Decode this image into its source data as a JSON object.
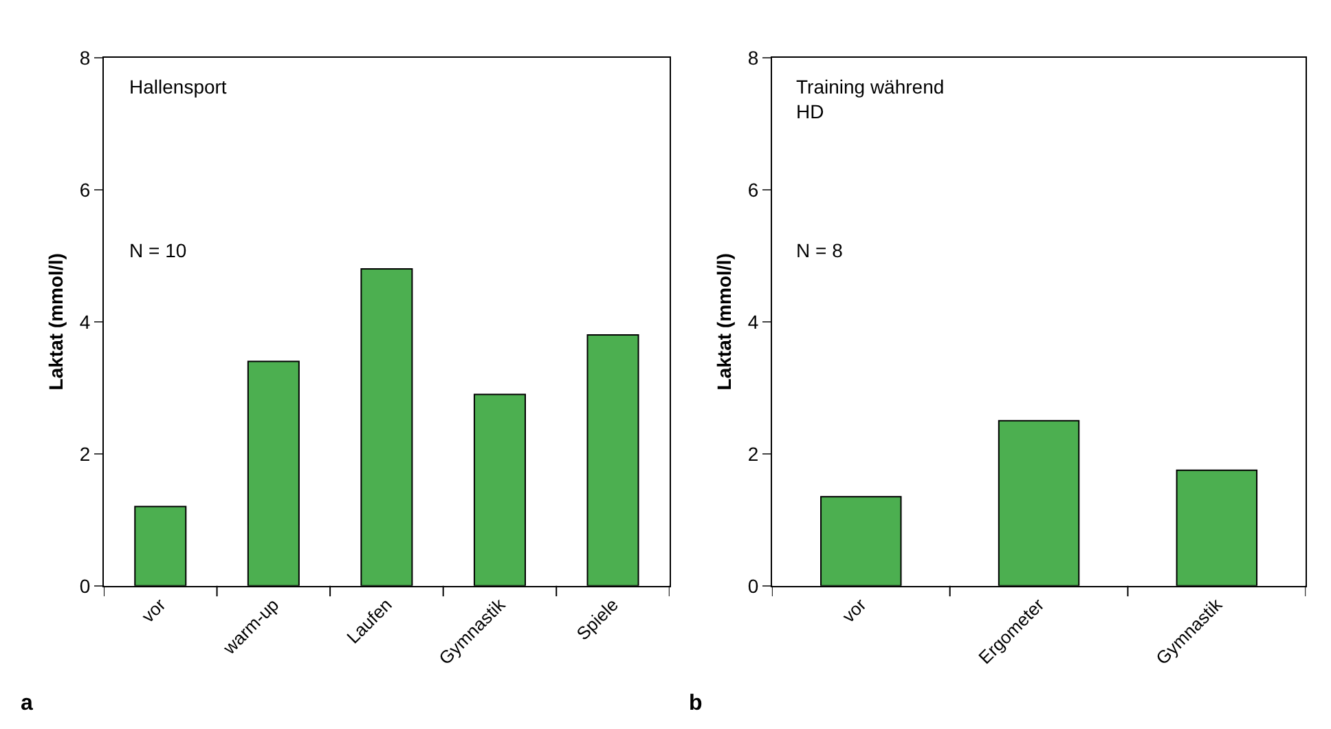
{
  "chart_data": [
    {
      "type": "bar",
      "categories": [
        "vor",
        "warm-up",
        "Laufen",
        "Gymnastik",
        "Spiele"
      ],
      "values": [
        1.2,
        3.4,
        4.8,
        2.9,
        3.8
      ],
      "color": "#4caf50",
      "ylabel": "Laktat (mmol/l)",
      "ylim": [
        0,
        8
      ],
      "yticks": [
        0,
        2,
        4,
        6,
        8
      ],
      "annotations": [
        "Hallensport",
        "N = 10",
        "a"
      ]
    },
    {
      "type": "bar",
      "categories": [
        "vor",
        "Ergometer",
        "Gymnastik"
      ],
      "values": [
        1.35,
        2.5,
        1.75
      ],
      "color": "#4caf50",
      "ylabel": "Laktat (mmol/l)",
      "ylim": [
        0,
        8
      ],
      "yticks": [
        0,
        2,
        4,
        6,
        8
      ],
      "annotations": [
        "Training während\nHD",
        "N = 8",
        "b"
      ]
    }
  ]
}
